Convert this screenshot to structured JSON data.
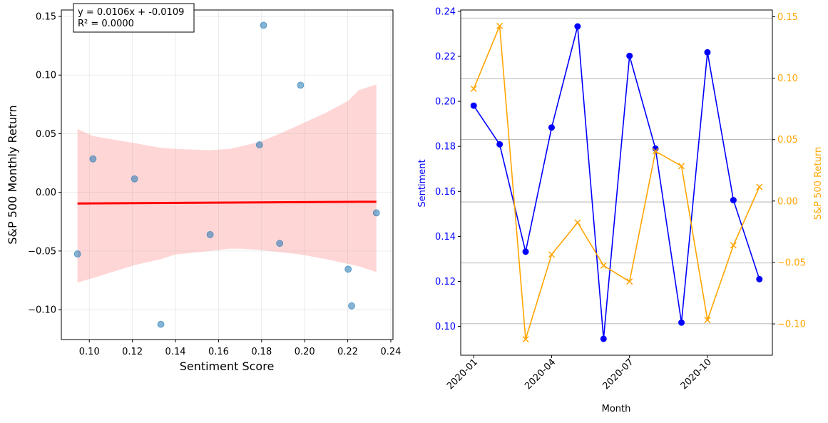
{
  "chart_data": [
    {
      "type": "scatter",
      "xlabel": "Sentiment Score",
      "ylabel": "S&P 500 Monthly Return",
      "xlim": [
        0.087,
        0.241
      ],
      "ylim": [
        -0.1255,
        0.1555
      ],
      "xticks": [
        0.1,
        0.12,
        0.14,
        0.16,
        0.18,
        0.2,
        0.22,
        0.24
      ],
      "xtick_labels": [
        "0.10",
        "0.12",
        "0.14",
        "0.16",
        "0.18",
        "0.20",
        "0.22",
        "0.24"
      ],
      "yticks": [
        -0.1,
        -0.05,
        0.0,
        0.05,
        0.1,
        0.15
      ],
      "ytick_labels": [
        "−0.10",
        "−0.05",
        "0.00",
        "0.05",
        "0.10",
        "0.15"
      ],
      "grid": true,
      "points": [
        {
          "x": 0.1981,
          "y": 0.0914
        },
        {
          "x": 0.1809,
          "y": 0.1425
        },
        {
          "x": 0.1332,
          "y": -0.1125
        },
        {
          "x": 0.1884,
          "y": -0.0435
        },
        {
          "x": 0.2333,
          "y": -0.0175
        },
        {
          "x": 0.0945,
          "y": -0.0525
        },
        {
          "x": 0.2202,
          "y": -0.0655
        },
        {
          "x": 0.179,
          "y": 0.0405
        },
        {
          "x": 0.1017,
          "y": 0.0285
        },
        {
          "x": 0.2218,
          "y": -0.0968
        },
        {
          "x": 0.1561,
          "y": -0.036
        },
        {
          "x": 0.121,
          "y": 0.0115
        }
      ],
      "regression": {
        "x": [
          0.0945,
          0.2333
        ],
        "y": [
          -0.0095,
          -0.008
        ]
      },
      "confidence_band": {
        "x": [
          0.0945,
          0.1017,
          0.121,
          0.1332,
          0.14,
          0.1561,
          0.165,
          0.17,
          0.179,
          0.1884,
          0.1981,
          0.21,
          0.2202,
          0.225,
          0.2333
        ],
        "upper": [
          0.054,
          0.048,
          0.042,
          0.038,
          0.037,
          0.036,
          0.037,
          0.039,
          0.043,
          0.05,
          0.058,
          0.068,
          0.078,
          0.087,
          0.092
        ],
        "lower": [
          -0.077,
          -0.073,
          -0.062,
          -0.057,
          -0.053,
          -0.05,
          -0.048,
          -0.048,
          -0.049,
          -0.051,
          -0.053,
          -0.057,
          -0.061,
          -0.063,
          -0.068
        ]
      },
      "colors": {
        "points": "#1f77b4",
        "line": "#ff0000",
        "band": "#ffcccc"
      },
      "annotation": {
        "line1": "y = 0.0106x + -0.0109",
        "line2": "R² = 0.0000"
      }
    },
    {
      "type": "line",
      "xlabel": "Month",
      "ylabel_left": "Sentiment",
      "ylabel_right": "S&P 500 Return",
      "x": [
        "2020-01",
        "2020-02",
        "2020-03",
        "2020-04",
        "2020-05",
        "2020-06",
        "2020-07",
        "2020-08",
        "2020-09",
        "2020-10",
        "2020-11",
        "2020-12"
      ],
      "xtick_labels": [
        "2020-01",
        "2020-04",
        "2020-07",
        "2020-10"
      ],
      "xtick_index": [
        0,
        3,
        6,
        9
      ],
      "xlim_index": [
        -0.5,
        11.5
      ],
      "ylim_left": [
        0.0872,
        0.2406
      ],
      "ylim_right": [
        -0.1255,
        0.1555
      ],
      "yticks_left": [
        0.1,
        0.12,
        0.14,
        0.16,
        0.18,
        0.2,
        0.22,
        0.24
      ],
      "ytick_labels_left": [
        "0.10",
        "0.12",
        "0.14",
        "0.16",
        "0.18",
        "0.20",
        "0.22",
        "0.24"
      ],
      "yticks_right": [
        -0.1,
        -0.05,
        0.0,
        0.05,
        0.1,
        0.15
      ],
      "ytick_labels_right": [
        "−0.10",
        "−0.05",
        "0.00",
        "0.05",
        "0.10",
        "0.15"
      ],
      "grid_right_y": [
        0.1012,
        0.1282,
        0.1553,
        0.1831,
        0.21,
        0.237
      ],
      "series": [
        {
          "axis": "left",
          "color": "#0000ff",
          "marker": "circle",
          "values": [
            0.1981,
            0.1809,
            0.1332,
            0.1884,
            0.2333,
            0.0945,
            0.2202,
            0.179,
            0.1017,
            0.2218,
            0.1561,
            0.121
          ]
        },
        {
          "axis": "right",
          "color": "#ffa500",
          "marker": "x",
          "values": [
            0.0914,
            0.1425,
            -0.1125,
            -0.0435,
            -0.0175,
            -0.0525,
            -0.0655,
            0.0405,
            0.0285,
            -0.0968,
            -0.036,
            0.0115
          ]
        }
      ]
    }
  ]
}
